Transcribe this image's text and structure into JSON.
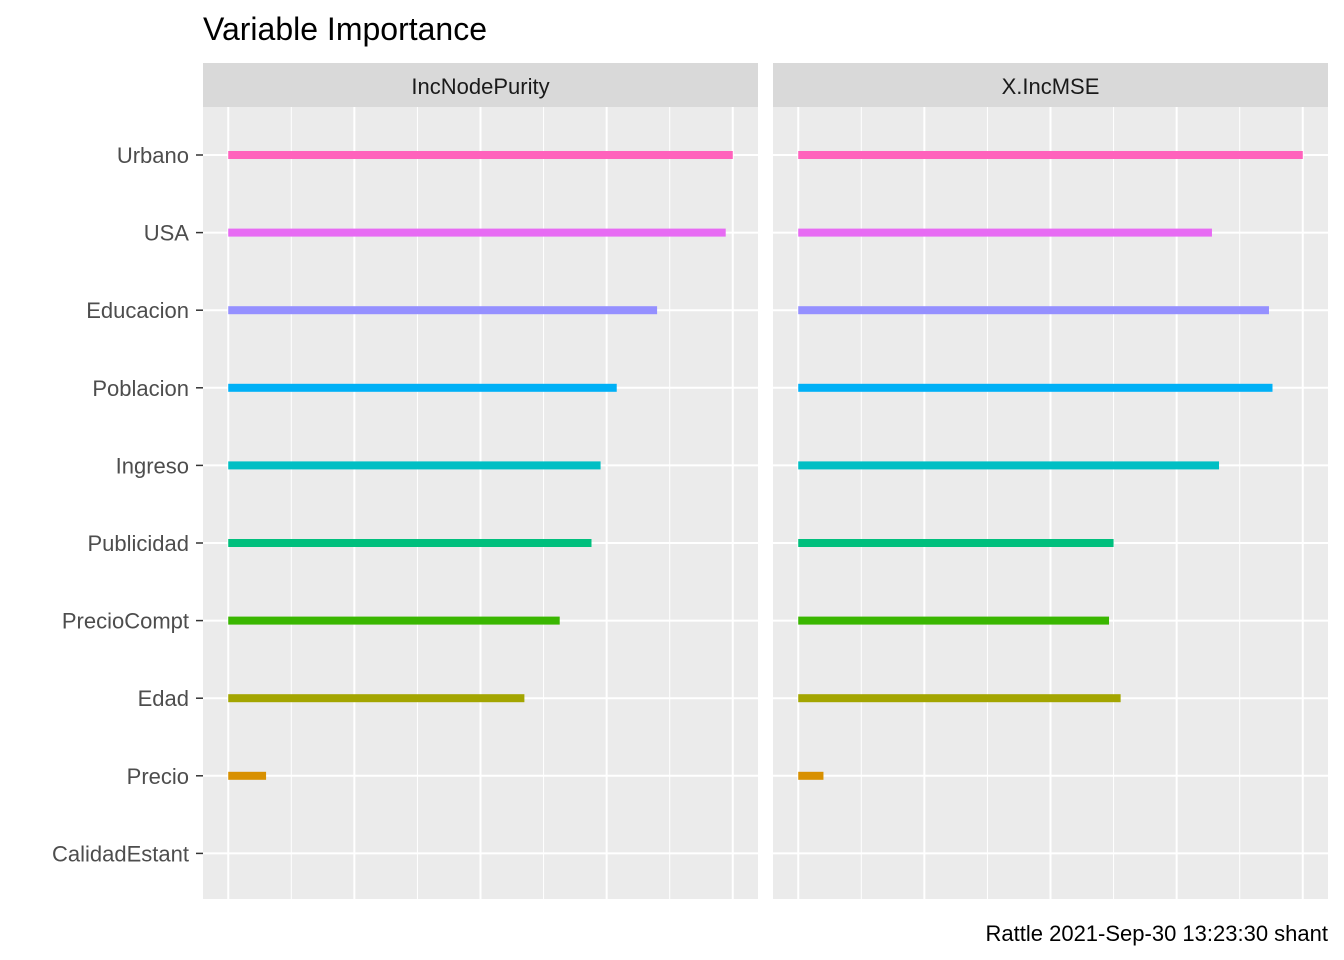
{
  "chart_data": {
    "type": "bar",
    "title": "Variable Importance",
    "caption": "Rattle 2021-Sep-30 13:23:30 shant",
    "categories": [
      "Urbano",
      "USA",
      "Educacion",
      "Poblacion",
      "Ingreso",
      "Publicidad",
      "PrecioCompt",
      "Edad",
      "Precio",
      "CalidadEstant"
    ],
    "colors": {
      "Urbano": "#FF62BC",
      "USA": "#E76BF3",
      "Educacion": "#9590FF",
      "Poblacion": "#00B0F6",
      "Ingreso": "#00BFC4",
      "Publicidad": "#00BF7D",
      "PrecioCompt": "#39B600",
      "Edad": "#A3A500",
      "Precio": "#D89000",
      "CalidadEstant": "#F8766D"
    },
    "panels": [
      {
        "name": "IncNodePurity",
        "values": [
          1.0,
          0.986,
          0.85,
          0.77,
          0.738,
          0.72,
          0.657,
          0.587,
          0.075,
          0.0
        ],
        "xlim": [
          -0.05,
          1.05
        ],
        "x_ticks_visible": false
      },
      {
        "name": "X.IncMSE",
        "values": [
          1.0,
          0.82,
          0.933,
          0.94,
          0.834,
          0.625,
          0.616,
          0.639,
          0.05,
          0.0
        ],
        "xlim": [
          -0.05,
          1.05
        ],
        "x_ticks_visible": false
      }
    ],
    "grid": true,
    "legend": "none"
  }
}
